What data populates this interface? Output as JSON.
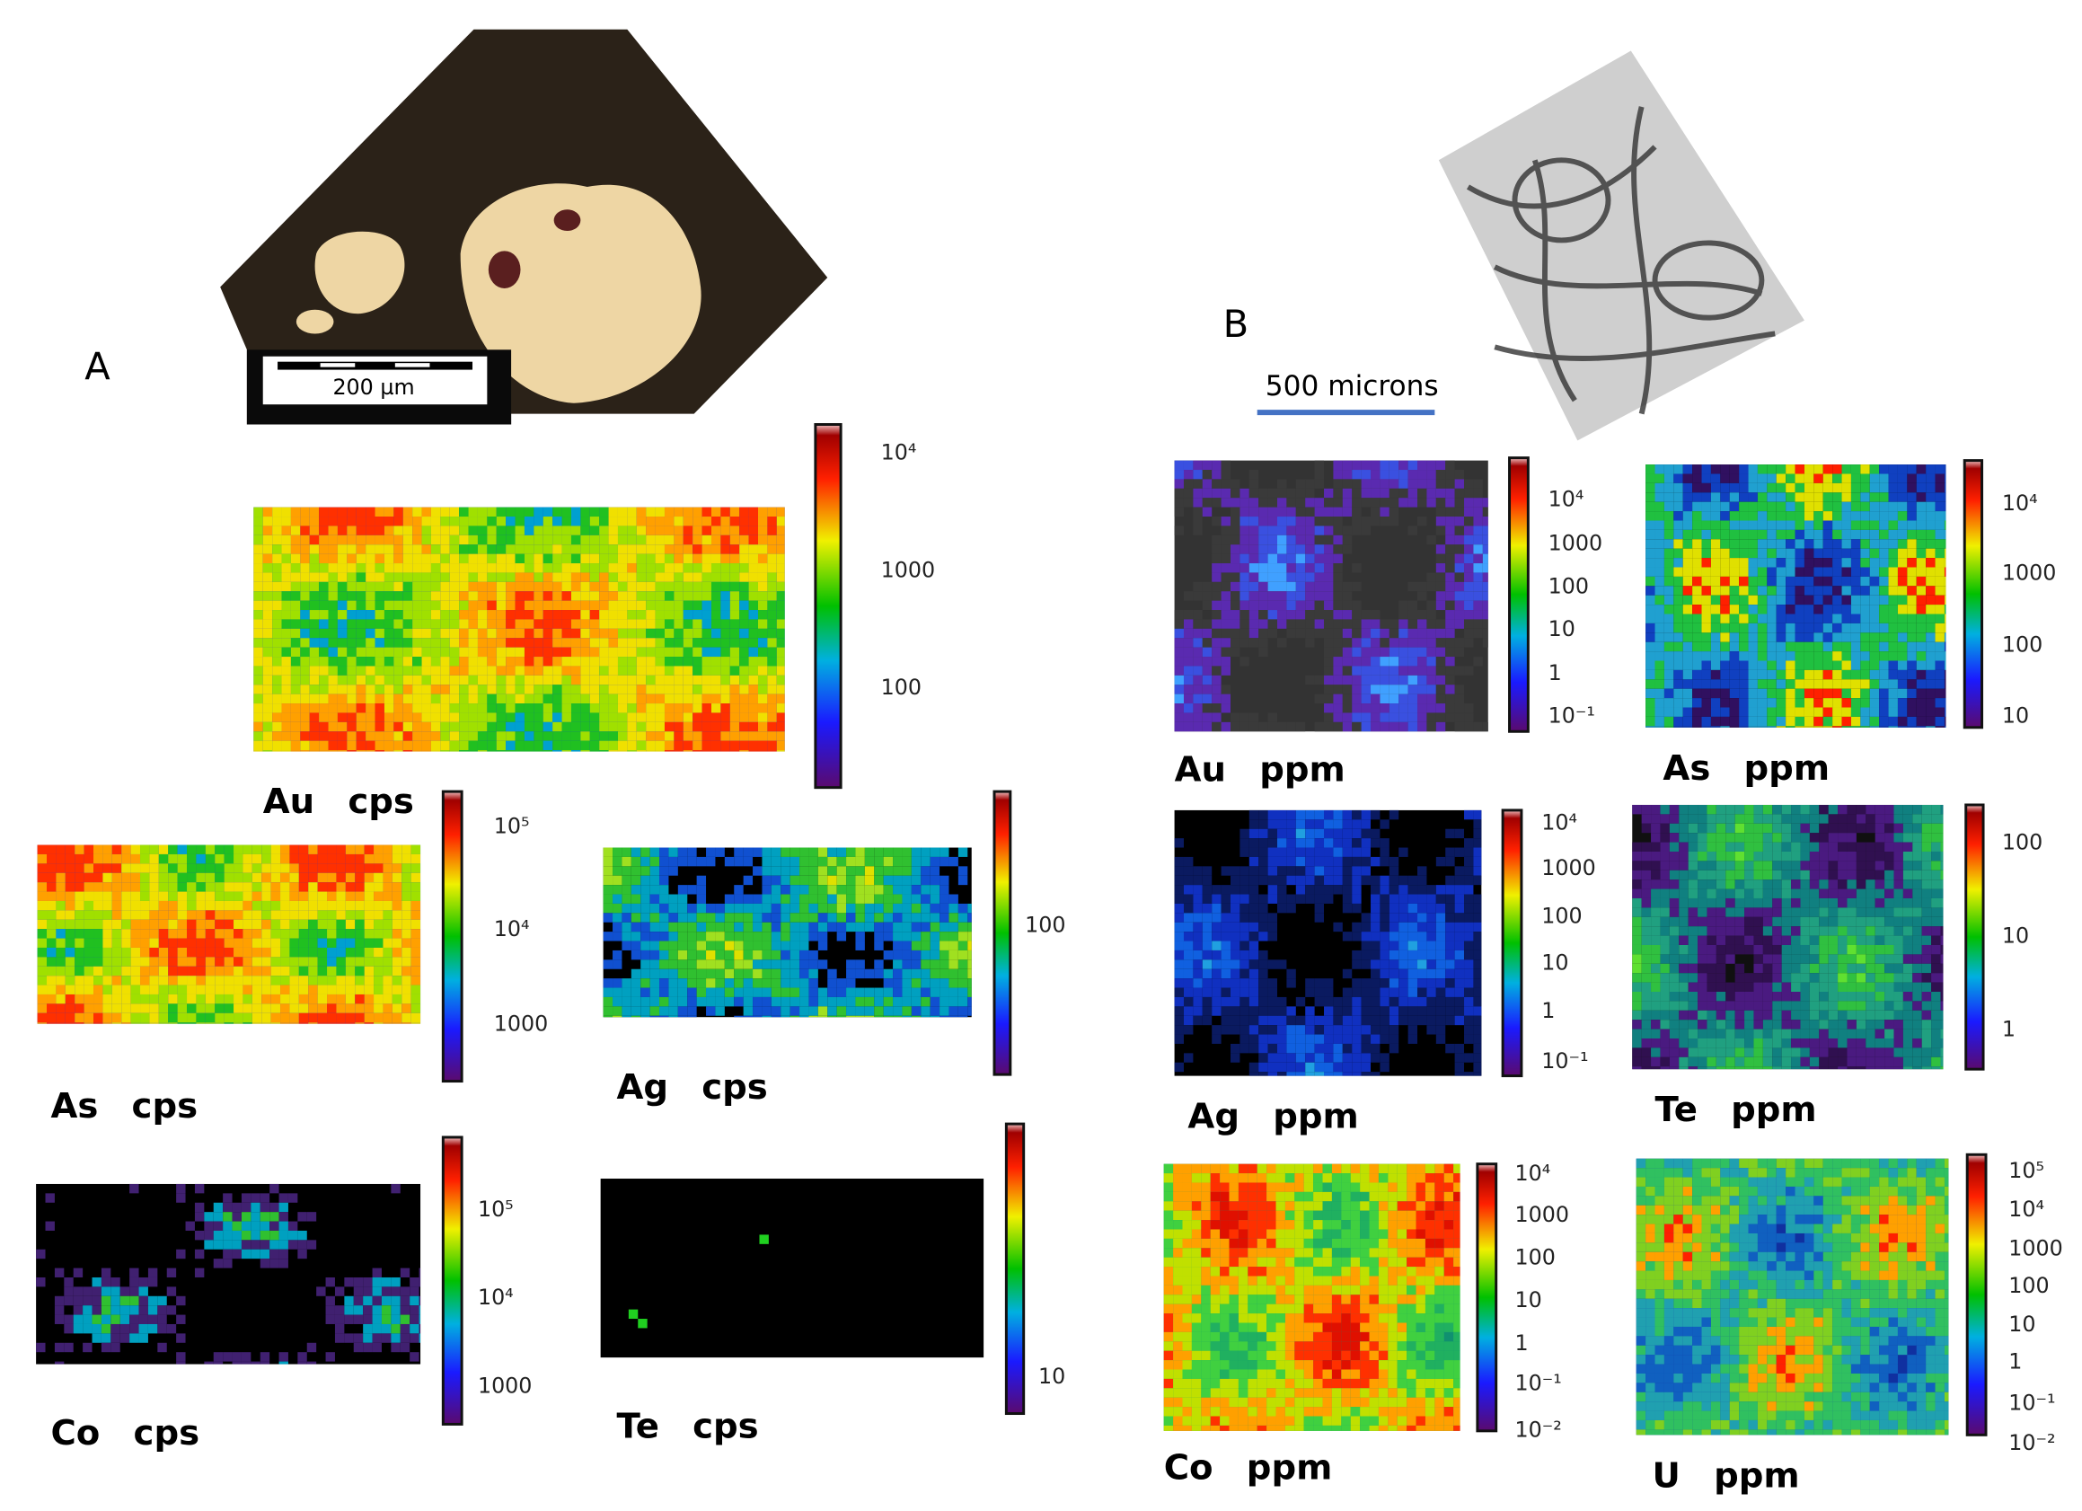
{
  "header": {
    "label_a": "A",
    "label_b": "B",
    "scale_a": "200 µm",
    "scale_b": "500 microns"
  },
  "panels": [
    {
      "label": "Au cps",
      "ticks": [
        "10⁴",
        "1000",
        "100"
      ]
    },
    {
      "label": "As cps",
      "ticks": [
        "10⁵",
        "10⁴",
        "1000"
      ]
    },
    {
      "label": "Ag cps",
      "ticks": [
        "100"
      ]
    },
    {
      "label": "Co cps",
      "ticks": [
        "10⁵",
        "10⁴",
        "1000"
      ]
    },
    {
      "label": "Te cps",
      "ticks": [
        "10"
      ]
    },
    {
      "label": "Au ppm",
      "ticks": [
        "10⁴",
        "1000",
        "100",
        "10",
        "1",
        "10⁻¹"
      ]
    },
    {
      "label": "As ppm",
      "ticks": [
        "10⁴",
        "1000",
        "100",
        "10"
      ]
    },
    {
      "label": "Ag ppm",
      "ticks": [
        "10⁴",
        "1000",
        "100",
        "10",
        "1",
        "10⁻¹"
      ]
    },
    {
      "label": "Te ppm",
      "ticks": [
        "100",
        "10",
        "1"
      ]
    },
    {
      "label": "Co ppm",
      "ticks": [
        "10⁴",
        "1000",
        "100",
        "10",
        "1",
        "10⁻¹",
        "10⁻²"
      ]
    },
    {
      "label": "U ppm",
      "ticks": [
        "10⁵",
        "10⁴",
        "1000",
        "100",
        "10",
        "1",
        "10⁻¹",
        "10⁻²"
      ]
    }
  ]
}
